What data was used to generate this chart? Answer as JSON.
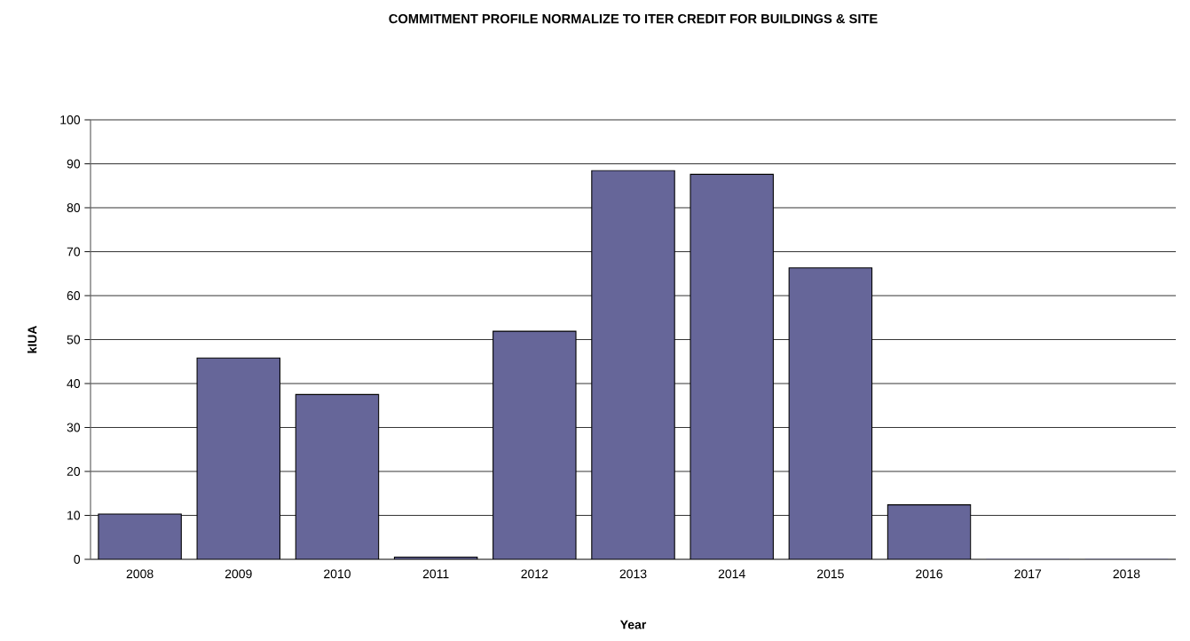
{
  "chart_data": {
    "type": "bar",
    "title": "COMMITMENT PROFILE NORMALIZE TO ITER CREDIT FOR BUILDINGS & SITE",
    "xlabel": "Year",
    "ylabel": "kIUA",
    "categories": [
      "2008",
      "2009",
      "2010",
      "2011",
      "2012",
      "2013",
      "2014",
      "2015",
      "2016",
      "2017",
      "2018"
    ],
    "values": [
      10.3,
      45.8,
      37.5,
      0.5,
      51.9,
      88.5,
      87.6,
      66.3,
      12.4,
      0,
      0
    ],
    "color": "#666699",
    "ylim": [
      0,
      100
    ],
    "yticks": [
      0,
      10,
      20,
      30,
      40,
      50,
      60,
      70,
      80,
      90,
      100
    ],
    "grid": "y"
  }
}
